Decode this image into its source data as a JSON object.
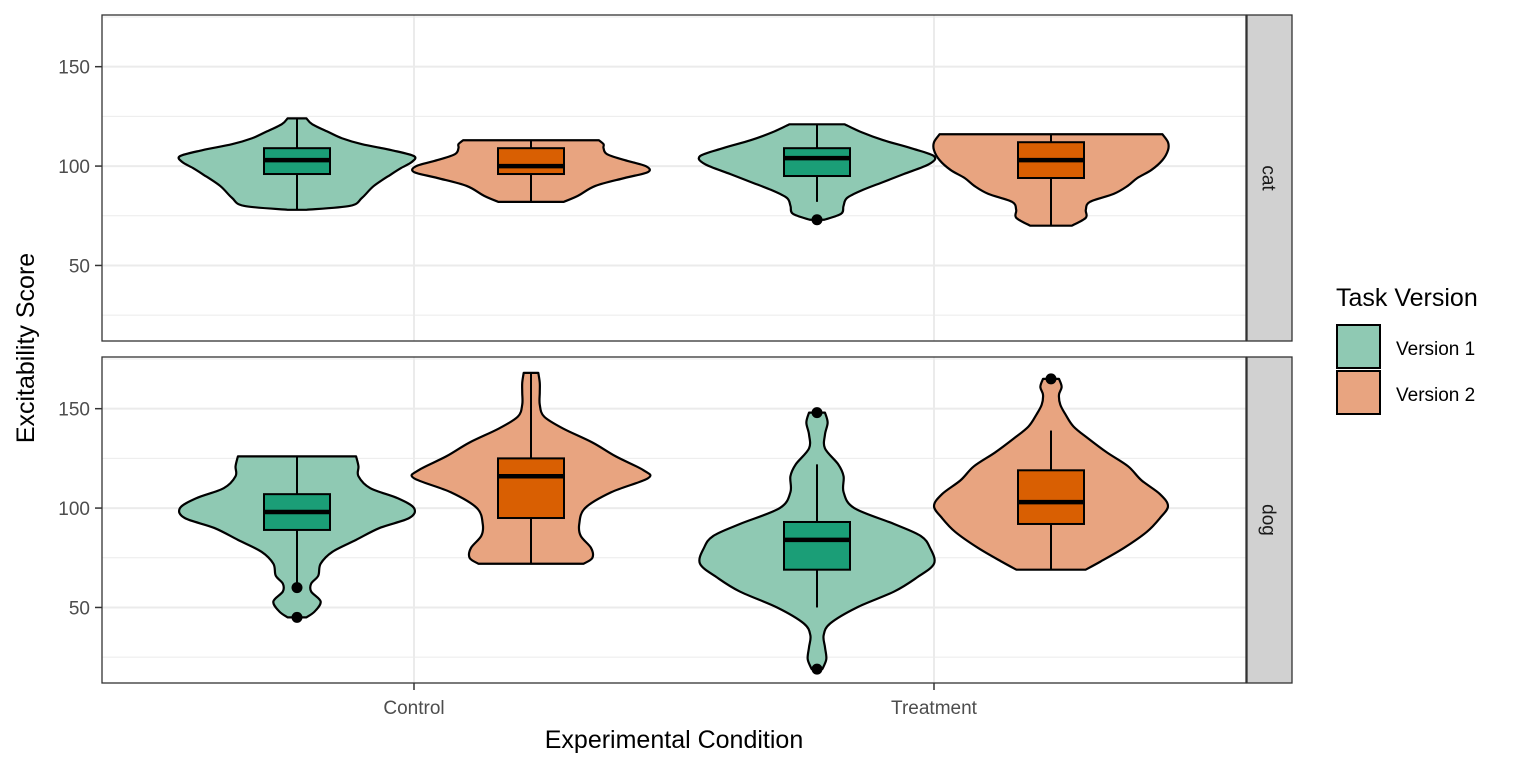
{
  "chart_data": {
    "type": "violin",
    "xlabel": "Experimental Condition",
    "ylabel": "Excitability Score",
    "categories": [
      "Control",
      "Treatment"
    ],
    "ylim": [
      12,
      176
    ],
    "yticks": [
      50,
      100,
      150
    ],
    "grid": true,
    "legend": {
      "title": "Task Version",
      "position": "right",
      "entries": [
        {
          "label": "Version 1",
          "fill": "#8fc9b3",
          "box_fill": "#1b9e77"
        },
        {
          "label": "Version 2",
          "fill": "#e8a480",
          "box_fill": "#d95f02"
        }
      ]
    },
    "facets": [
      {
        "label": "cat",
        "groups": [
          {
            "category": "Control",
            "version": "Version 1",
            "box": {
              "q1": 96,
              "median": 103,
              "q3": 109,
              "whisker_low": 78,
              "whisker_high": 124
            },
            "outliers": [],
            "violin": [
              [
                78,
                0.08
              ],
              [
                80,
                0.45
              ],
              [
                84,
                0.55
              ],
              [
                90,
                0.65
              ],
              [
                96,
                0.8
              ],
              [
                99,
                0.88
              ],
              [
                102,
                0.97
              ],
              [
                105,
                0.99
              ],
              [
                108,
                0.8
              ],
              [
                111,
                0.55
              ],
              [
                114,
                0.38
              ],
              [
                117,
                0.27
              ],
              [
                121,
                0.13
              ],
              [
                124,
                0.08
              ]
            ]
          },
          {
            "category": "Control",
            "version": "Version 2",
            "box": {
              "q1": 96,
              "median": 100,
              "q3": 109,
              "whisker_low": 82,
              "whisker_high": 113
            },
            "outliers": [],
            "violin": [
              [
                82,
                0.28
              ],
              [
                85,
                0.4
              ],
              [
                90,
                0.55
              ],
              [
                94,
                0.8
              ],
              [
                97,
                1.0
              ],
              [
                100,
                0.98
              ],
              [
                103,
                0.8
              ],
              [
                106,
                0.65
              ],
              [
                109,
                0.62
              ],
              [
                111,
                0.62
              ],
              [
                113,
                0.58
              ]
            ]
          },
          {
            "category": "Treatment",
            "version": "Version 1",
            "box": {
              "q1": 95,
              "median": 104,
              "q3": 109,
              "whisker_low": 82,
              "whisker_high": 121
            },
            "outliers": [
              73
            ],
            "violin": [
              [
                73,
                0.06
              ],
              [
                76,
                0.2
              ],
              [
                80,
                0.22
              ],
              [
                84,
                0.25
              ],
              [
                88,
                0.38
              ],
              [
                92,
                0.55
              ],
              [
                96,
                0.72
              ],
              [
                101,
                0.93
              ],
              [
                105,
                0.97
              ],
              [
                109,
                0.78
              ],
              [
                113,
                0.55
              ],
              [
                117,
                0.37
              ],
              [
                121,
                0.23
              ]
            ]
          },
          {
            "category": "Treatment",
            "version": "Version 2",
            "box": {
              "q1": 94,
              "median": 103,
              "q3": 112,
              "whisker_low": 70,
              "whisker_high": 116
            },
            "outliers": [],
            "violin": [
              [
                70,
                0.15
              ],
              [
                74,
                0.25
              ],
              [
                78,
                0.25
              ],
              [
                82,
                0.28
              ],
              [
                86,
                0.45
              ],
              [
                90,
                0.55
              ],
              [
                94,
                0.62
              ],
              [
                98,
                0.72
              ],
              [
                103,
                0.8
              ],
              [
                108,
                0.84
              ],
              [
                112,
                0.84
              ],
              [
                116,
                0.8
              ]
            ]
          }
        ]
      },
      {
        "label": "dog",
        "groups": [
          {
            "category": "Control",
            "version": "Version 1",
            "box": {
              "q1": 89,
              "median": 98,
              "q3": 107,
              "whisker_low": 60,
              "whisker_high": 126
            },
            "outliers": [
              60,
              45
            ],
            "violin": [
              [
                45,
                0.08
              ],
              [
                48,
                0.15
              ],
              [
                53,
                0.2
              ],
              [
                58,
                0.12
              ],
              [
                62,
                0.12
              ],
              [
                66,
                0.18
              ],
              [
                72,
                0.2
              ],
              [
                78,
                0.3
              ],
              [
                84,
                0.5
              ],
              [
                90,
                0.7
              ],
              [
                95,
                0.95
              ],
              [
                100,
                0.99
              ],
              [
                105,
                0.85
              ],
              [
                110,
                0.62
              ],
              [
                116,
                0.52
              ],
              [
                121,
                0.52
              ],
              [
                126,
                0.5
              ]
            ]
          },
          {
            "category": "Control",
            "version": "Version 2",
            "box": {
              "q1": 95,
              "median": 116,
              "q3": 125,
              "whisker_low": 72,
              "whisker_high": 168
            },
            "outliers": [],
            "violin": [
              [
                72,
                0.36
              ],
              [
                75,
                0.42
              ],
              [
                80,
                0.41
              ],
              [
                86,
                0.34
              ],
              [
                92,
                0.33
              ],
              [
                100,
                0.37
              ],
              [
                108,
                0.55
              ],
              [
                115,
                0.8
              ],
              [
                119,
                0.77
              ],
              [
                126,
                0.58
              ],
              [
                133,
                0.42
              ],
              [
                140,
                0.22
              ],
              [
                146,
                0.09
              ],
              [
                152,
                0.06
              ],
              [
                158,
                0.06
              ],
              [
                163,
                0.06
              ],
              [
                168,
                0.05
              ]
            ]
          },
          {
            "category": "Treatment",
            "version": "Version 1",
            "box": {
              "q1": 69,
              "median": 84,
              "q3": 93,
              "whisker_low": 50,
              "whisker_high": 122
            },
            "outliers": [
              148,
              19
            ],
            "violin": [
              [
                19,
                0.04
              ],
              [
                24,
                0.07
              ],
              [
                30,
                0.06
              ],
              [
                36,
                0.05
              ],
              [
                42,
                0.1
              ],
              [
                50,
                0.3
              ],
              [
                58,
                0.58
              ],
              [
                65,
                0.75
              ],
              [
                72,
                0.88
              ],
              [
                80,
                0.85
              ],
              [
                86,
                0.78
              ],
              [
                92,
                0.58
              ],
              [
                100,
                0.28
              ],
              [
                108,
                0.2
              ],
              [
                116,
                0.2
              ],
              [
                122,
                0.16
              ],
              [
                130,
                0.06
              ],
              [
                137,
                0.06
              ],
              [
                143,
                0.08
              ],
              [
                148,
                0.06
              ]
            ]
          },
          {
            "category": "Treatment",
            "version": "Version 2",
            "box": {
              "q1": 92,
              "median": 103,
              "q3": 119,
              "whisker_low": 69,
              "whisker_high": 139
            },
            "outliers": [
              165
            ],
            "violin": [
              [
                69,
                0.26
              ],
              [
                73,
                0.37
              ],
              [
                80,
                0.55
              ],
              [
                88,
                0.72
              ],
              [
                95,
                0.82
              ],
              [
                101,
                0.88
              ],
              [
                107,
                0.82
              ],
              [
                114,
                0.68
              ],
              [
                121,
                0.58
              ],
              [
                128,
                0.42
              ],
              [
                135,
                0.28
              ],
              [
                141,
                0.17
              ],
              [
                147,
                0.11
              ],
              [
                152,
                0.07
              ],
              [
                157,
                0.06
              ],
              [
                161,
                0.08
              ],
              [
                165,
                0.06
              ]
            ]
          }
        ]
      }
    ]
  }
}
